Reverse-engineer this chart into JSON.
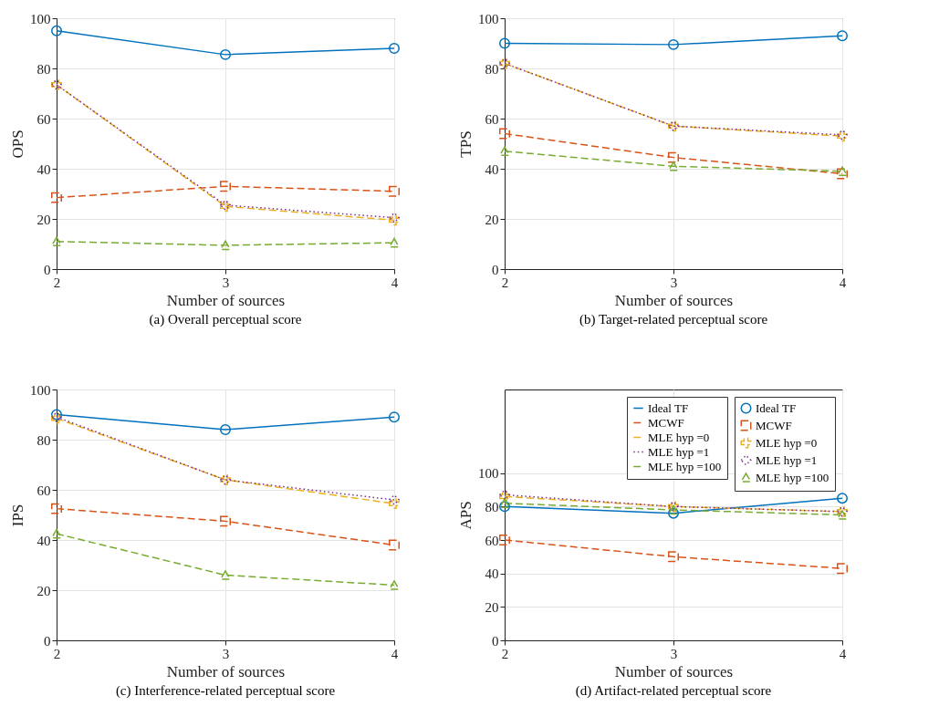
{
  "chart_data": [
    {
      "type": "line",
      "title": "(a) Overall perceptual score",
      "xlabel": "Number of sources",
      "ylabel": "OPS",
      "x": [
        2,
        3,
        4
      ],
      "xlim": [
        2,
        4
      ],
      "xticks": [
        2,
        3,
        4
      ],
      "ylim": [
        0,
        100
      ],
      "yticks": [
        0,
        20,
        40,
        60,
        80,
        100
      ],
      "grid": true,
      "legend": false,
      "series": [
        {
          "color": "#0072bd",
          "marker": "circle",
          "line_style": "solid",
          "values": [
            95,
            85.5,
            88
          ]
        },
        {
          "color": "#d95319",
          "marker": "square",
          "line_style": "dashed",
          "values": [
            28.5,
            33,
            31
          ]
        },
        {
          "color": "#edb120",
          "marker": "cross",
          "line_style": "dashed",
          "values": [
            73.5,
            25,
            19.5
          ]
        },
        {
          "color": "#7e2f8e",
          "marker": "diamond",
          "line_style": "dotted",
          "values": [
            73.5,
            25.5,
            20.5
          ]
        },
        {
          "color": "#77ac30",
          "marker": "triangle",
          "line_style": "dashed",
          "values": [
            11,
            9.5,
            10.5
          ]
        }
      ]
    },
    {
      "type": "line",
      "title": "(b) Target-related perceptual score",
      "xlabel": "Number of sources",
      "ylabel": "TPS",
      "x": [
        2,
        3,
        4
      ],
      "xlim": [
        2,
        4
      ],
      "xticks": [
        2,
        3,
        4
      ],
      "ylim": [
        0,
        100
      ],
      "yticks": [
        0,
        20,
        40,
        60,
        80,
        100
      ],
      "grid": true,
      "legend": false,
      "series": [
        {
          "color": "#0072bd",
          "marker": "circle",
          "line_style": "solid",
          "values": [
            90,
            89.5,
            93
          ]
        },
        {
          "color": "#d95319",
          "marker": "square",
          "line_style": "dashed",
          "values": [
            54,
            44.5,
            38
          ]
        },
        {
          "color": "#edb120",
          "marker": "cross",
          "line_style": "dashed",
          "values": [
            82,
            57,
            53
          ]
        },
        {
          "color": "#7e2f8e",
          "marker": "diamond",
          "line_style": "dotted",
          "values": [
            82,
            57,
            53.5
          ]
        },
        {
          "color": "#77ac30",
          "marker": "triangle",
          "line_style": "dashed",
          "values": [
            47,
            41,
            39
          ]
        }
      ]
    },
    {
      "type": "line",
      "title": "(c) Interference-related perceptual score",
      "xlabel": "Number of sources",
      "ylabel": "IPS",
      "x": [
        2,
        3,
        4
      ],
      "xlim": [
        2,
        4
      ],
      "xticks": [
        2,
        3,
        4
      ],
      "ylim": [
        0,
        100
      ],
      "yticks": [
        0,
        20,
        40,
        60,
        80,
        100
      ],
      "grid": true,
      "legend": false,
      "series": [
        {
          "color": "#0072bd",
          "marker": "circle",
          "line_style": "solid",
          "values": [
            90,
            84,
            89
          ]
        },
        {
          "color": "#d95319",
          "marker": "square",
          "line_style": "dashed",
          "values": [
            52.5,
            47.5,
            38
          ]
        },
        {
          "color": "#edb120",
          "marker": "cross",
          "line_style": "dashed",
          "values": [
            88.5,
            64,
            54.5
          ]
        },
        {
          "color": "#7e2f8e",
          "marker": "diamond",
          "line_style": "dotted",
          "values": [
            89,
            64,
            56
          ]
        },
        {
          "color": "#77ac30",
          "marker": "triangle",
          "line_style": "dashed",
          "values": [
            42.5,
            26,
            22
          ]
        }
      ]
    },
    {
      "type": "line",
      "title": "(d) Artifact-related perceptual score",
      "xlabel": "Number of sources",
      "ylabel": "APS",
      "x": [
        2,
        3,
        4
      ],
      "xlim": [
        2,
        4
      ],
      "xticks": [
        2,
        3,
        4
      ],
      "ylim": [
        0,
        150
      ],
      "yticks": [
        0,
        20,
        40,
        60,
        80,
        100
      ],
      "grid": true,
      "legend": "top right",
      "series": [
        {
          "name": "Ideal TF",
          "color": "#0072bd",
          "marker": "circle",
          "line_style": "solid",
          "values": [
            80,
            76,
            85
          ]
        },
        {
          "name": "MCWF",
          "color": "#d95319",
          "marker": "square",
          "line_style": "dashed",
          "values": [
            60,
            50,
            43
          ]
        },
        {
          "name": "MLE hyp =0",
          "color": "#edb120",
          "marker": "cross",
          "line_style": "dashed",
          "values": [
            86,
            80,
            77
          ]
        },
        {
          "name": "MLE hyp =1",
          "color": "#7e2f8e",
          "marker": "diamond",
          "line_style": "dotted",
          "values": [
            87,
            80,
            77
          ]
        },
        {
          "name": "MLE hyp =100",
          "color": "#77ac30",
          "marker": "triangle",
          "line_style": "dashed",
          "values": [
            82,
            78,
            75
          ]
        }
      ]
    }
  ]
}
